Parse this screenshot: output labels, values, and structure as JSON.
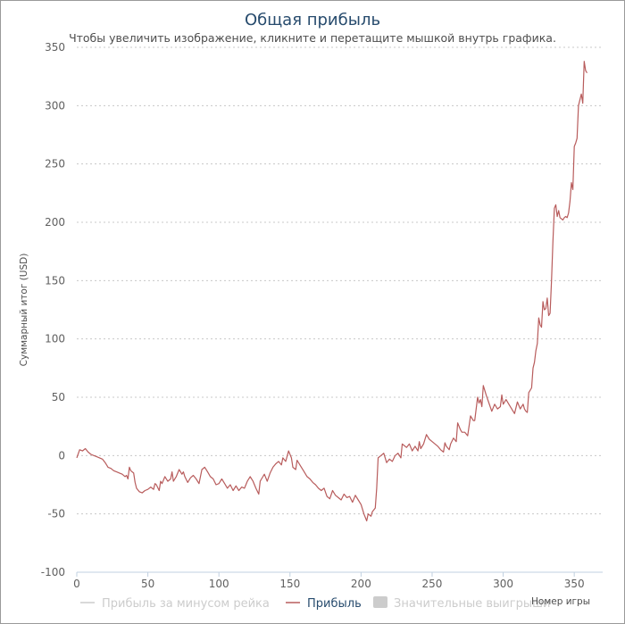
{
  "chart_data": {
    "type": "line",
    "title": "Общая прибыль",
    "subtitle": "Чтобы увеличить изображение, кликните и перетащите мышкой внутрь графика.",
    "xlabel": "Номер игры",
    "ylabel": "Суммарный итог (USD)",
    "xlim": [
      0,
      370
    ],
    "ylim": [
      -100,
      350
    ],
    "xticks": [
      0,
      50,
      100,
      150,
      200,
      250,
      300,
      350
    ],
    "yticks": [
      -100,
      -50,
      0,
      50,
      100,
      150,
      200,
      250,
      300,
      350
    ],
    "grid": true,
    "legend_position": "bottom",
    "series": [
      {
        "name": "Прибыль",
        "color": "#b85c5c",
        "points": [
          [
            0,
            -2
          ],
          [
            2,
            5
          ],
          [
            4,
            4
          ],
          [
            6,
            6
          ],
          [
            8,
            3
          ],
          [
            10,
            1
          ],
          [
            12,
            0
          ],
          [
            14,
            -1
          ],
          [
            16,
            -2
          ],
          [
            18,
            -3
          ],
          [
            20,
            -6
          ],
          [
            22,
            -10
          ],
          [
            24,
            -11
          ],
          [
            26,
            -13
          ],
          [
            28,
            -14
          ],
          [
            30,
            -15
          ],
          [
            32,
            -16
          ],
          [
            34,
            -18
          ],
          [
            35,
            -17
          ],
          [
            36,
            -20
          ],
          [
            37,
            -10
          ],
          [
            38,
            -13
          ],
          [
            40,
            -15
          ],
          [
            41,
            -23
          ],
          [
            42,
            -28
          ],
          [
            44,
            -31
          ],
          [
            46,
            -32
          ],
          [
            48,
            -30
          ],
          [
            50,
            -29
          ],
          [
            52,
            -27
          ],
          [
            54,
            -29
          ],
          [
            55,
            -24
          ],
          [
            56,
            -25
          ],
          [
            58,
            -30
          ],
          [
            59,
            -22
          ],
          [
            60,
            -24
          ],
          [
            62,
            -18
          ],
          [
            64,
            -22
          ],
          [
            66,
            -20
          ],
          [
            67,
            -14
          ],
          [
            68,
            -22
          ],
          [
            70,
            -18
          ],
          [
            72,
            -12
          ],
          [
            74,
            -16
          ],
          [
            75,
            -14
          ],
          [
            76,
            -18
          ],
          [
            78,
            -23
          ],
          [
            80,
            -19
          ],
          [
            82,
            -17
          ],
          [
            84,
            -20
          ],
          [
            86,
            -24
          ],
          [
            87,
            -18
          ],
          [
            88,
            -12
          ],
          [
            90,
            -10
          ],
          [
            92,
            -14
          ],
          [
            94,
            -18
          ],
          [
            96,
            -20
          ],
          [
            98,
            -25
          ],
          [
            100,
            -24
          ],
          [
            102,
            -20
          ],
          [
            104,
            -24
          ],
          [
            106,
            -28
          ],
          [
            108,
            -25
          ],
          [
            110,
            -30
          ],
          [
            112,
            -26
          ],
          [
            114,
            -30
          ],
          [
            116,
            -27
          ],
          [
            118,
            -28
          ],
          [
            119,
            -25
          ],
          [
            120,
            -22
          ],
          [
            122,
            -18
          ],
          [
            124,
            -22
          ],
          [
            126,
            -28
          ],
          [
            128,
            -33
          ],
          [
            129,
            -22
          ],
          [
            130,
            -20
          ],
          [
            132,
            -16
          ],
          [
            134,
            -22
          ],
          [
            136,
            -15
          ],
          [
            138,
            -10
          ],
          [
            140,
            -7
          ],
          [
            142,
            -5
          ],
          [
            144,
            -8
          ],
          [
            145,
            -2
          ],
          [
            147,
            -5
          ],
          [
            149,
            4
          ],
          [
            151,
            -2
          ],
          [
            152,
            -10
          ],
          [
            154,
            -12
          ],
          [
            155,
            -4
          ],
          [
            157,
            -8
          ],
          [
            160,
            -14
          ],
          [
            162,
            -18
          ],
          [
            164,
            -20
          ],
          [
            166,
            -23
          ],
          [
            168,
            -25
          ],
          [
            170,
            -28
          ],
          [
            172,
            -30
          ],
          [
            174,
            -28
          ],
          [
            176,
            -35
          ],
          [
            178,
            -37
          ],
          [
            180,
            -30
          ],
          [
            182,
            -34
          ],
          [
            184,
            -36
          ],
          [
            186,
            -38
          ],
          [
            188,
            -33
          ],
          [
            190,
            -36
          ],
          [
            192,
            -35
          ],
          [
            194,
            -40
          ],
          [
            196,
            -34
          ],
          [
            198,
            -38
          ],
          [
            200,
            -42
          ],
          [
            202,
            -50
          ],
          [
            204,
            -56
          ],
          [
            205,
            -50
          ],
          [
            207,
            -52
          ],
          [
            208,
            -48
          ],
          [
            210,
            -45
          ],
          [
            211,
            -28
          ],
          [
            212,
            -2
          ],
          [
            214,
            0
          ],
          [
            216,
            2
          ],
          [
            218,
            -6
          ],
          [
            220,
            -3
          ],
          [
            222,
            -5
          ],
          [
            224,
            0
          ],
          [
            226,
            2
          ],
          [
            228,
            -2
          ],
          [
            229,
            10
          ],
          [
            230,
            9
          ],
          [
            232,
            7
          ],
          [
            234,
            10
          ],
          [
            236,
            4
          ],
          [
            238,
            8
          ],
          [
            240,
            4
          ],
          [
            241,
            12
          ],
          [
            242,
            6
          ],
          [
            244,
            10
          ],
          [
            246,
            18
          ],
          [
            248,
            14
          ],
          [
            250,
            12
          ],
          [
            252,
            10
          ],
          [
            254,
            8
          ],
          [
            256,
            5
          ],
          [
            258,
            3
          ],
          [
            259,
            11
          ],
          [
            260,
            8
          ],
          [
            262,
            5
          ],
          [
            263,
            10
          ],
          [
            265,
            15
          ],
          [
            267,
            12
          ],
          [
            268,
            28
          ],
          [
            270,
            22
          ],
          [
            271,
            20
          ],
          [
            273,
            20
          ],
          [
            275,
            17
          ],
          [
            277,
            34
          ],
          [
            279,
            30
          ],
          [
            280,
            30
          ],
          [
            282,
            50
          ],
          [
            283,
            45
          ],
          [
            284,
            48
          ],
          [
            285,
            42
          ],
          [
            286,
            60
          ],
          [
            288,
            52
          ],
          [
            290,
            45
          ],
          [
            292,
            38
          ],
          [
            294,
            44
          ],
          [
            296,
            40
          ],
          [
            298,
            42
          ],
          [
            299,
            52
          ],
          [
            300,
            44
          ],
          [
            302,
            48
          ],
          [
            304,
            44
          ],
          [
            306,
            40
          ],
          [
            308,
            36
          ],
          [
            310,
            46
          ],
          [
            312,
            40
          ],
          [
            314,
            44
          ],
          [
            315,
            40
          ],
          [
            316,
            38
          ],
          [
            317,
            37
          ],
          [
            318,
            54
          ],
          [
            320,
            58
          ],
          [
            321,
            75
          ],
          [
            322,
            80
          ],
          [
            323,
            90
          ],
          [
            324,
            96
          ],
          [
            325,
            118
          ],
          [
            326,
            112
          ],
          [
            327,
            110
          ],
          [
            328,
            132
          ],
          [
            329,
            125
          ],
          [
            330,
            126
          ],
          [
            331,
            135
          ],
          [
            332,
            120
          ],
          [
            333,
            122
          ],
          [
            334,
            150
          ],
          [
            335,
            184
          ],
          [
            336,
            212
          ],
          [
            337,
            215
          ],
          [
            338,
            205
          ],
          [
            339,
            210
          ],
          [
            340,
            204
          ],
          [
            342,
            202
          ],
          [
            343,
            204
          ],
          [
            344,
            205
          ],
          [
            345,
            204
          ],
          [
            346,
            208
          ],
          [
            347,
            218
          ],
          [
            348,
            234
          ],
          [
            349,
            228
          ],
          [
            350,
            265
          ],
          [
            351,
            268
          ],
          [
            352,
            272
          ],
          [
            353,
            300
          ],
          [
            354,
            305
          ],
          [
            355,
            310
          ],
          [
            356,
            302
          ],
          [
            357,
            338
          ],
          [
            358,
            330
          ],
          [
            359,
            328
          ]
        ]
      }
    ],
    "legend": [
      {
        "label": "Прибыль за минусом рейка",
        "color": "#cccccc",
        "symbol": "line",
        "visible": false
      },
      {
        "label": "Прибыль",
        "color": "#b85c5c",
        "symbol": "line",
        "visible": true
      },
      {
        "label": "Значительные выигрыши",
        "color": "#cccccc",
        "symbol": "box",
        "visible": false
      }
    ]
  }
}
